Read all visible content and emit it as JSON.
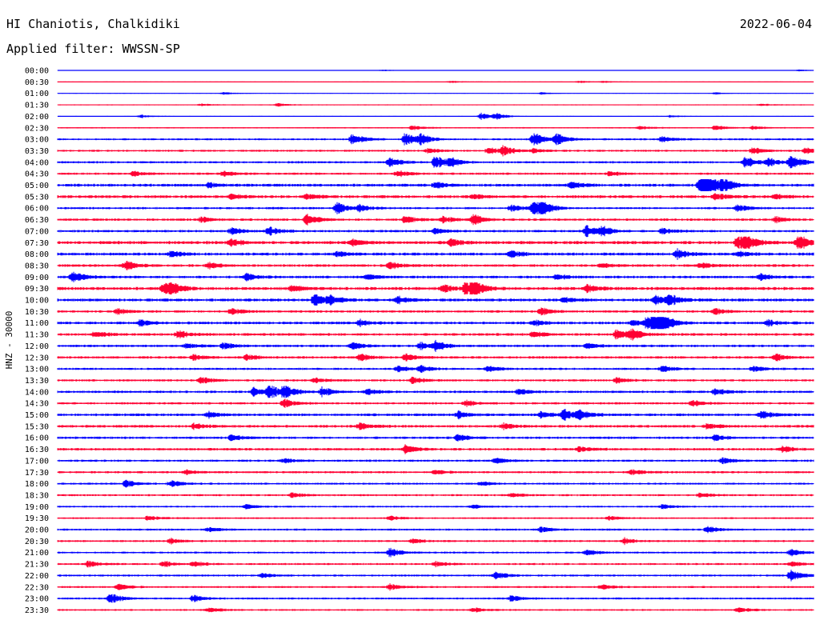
{
  "header": {
    "station": "HI Chaniotis, Chalkidiki",
    "date": "2022-06-04",
    "filter": "Applied filter: WWSSN-SP"
  },
  "chart_data": {
    "type": "line",
    "title": "HI Chaniotis, Chalkidiki",
    "ylabel": "HNZ - 30000",
    "colors": {
      "even_hour": "#0000ff",
      "half_hour": "#ff0033"
    },
    "rows": [
      {
        "label": "00:00",
        "noise": 0.25,
        "events": [
          [
            0.43,
            0.6
          ],
          [
            0.98,
            0.8
          ]
        ]
      },
      {
        "label": "00:30",
        "noise": 0.35,
        "events": [
          [
            0.52,
            1.0
          ],
          [
            0.69,
            1.0
          ],
          [
            0.72,
            0.8
          ]
        ]
      },
      {
        "label": "01:00",
        "noise": 0.3,
        "events": [
          [
            0.22,
            1.2
          ],
          [
            0.64,
            0.9
          ],
          [
            0.87,
            1.0
          ]
        ]
      },
      {
        "label": "01:30",
        "noise": 0.45,
        "events": [
          [
            0.19,
            1.0
          ],
          [
            0.29,
            1.5
          ],
          [
            0.93,
            0.9
          ]
        ]
      },
      {
        "label": "02:00",
        "noise": 0.35,
        "events": [
          [
            0.11,
            1.5
          ],
          [
            0.56,
            3.0
          ],
          [
            0.58,
            2.5
          ],
          [
            0.81,
            1.0
          ]
        ]
      },
      {
        "label": "02:30",
        "noise": 0.6,
        "events": [
          [
            0.47,
            2.0
          ],
          [
            0.77,
            1.5
          ],
          [
            0.87,
            2.2
          ],
          [
            0.92,
            1.5
          ]
        ]
      },
      {
        "label": "03:00",
        "noise": 0.9,
        "events": [
          [
            0.39,
            5.0
          ],
          [
            0.46,
            6.0
          ],
          [
            0.48,
            4.0
          ],
          [
            0.63,
            6.0
          ],
          [
            0.66,
            5.0
          ],
          [
            0.8,
            2.5
          ]
        ]
      },
      {
        "label": "03:30",
        "noise": 0.9,
        "events": [
          [
            0.49,
            2.0
          ],
          [
            0.57,
            3.0
          ],
          [
            0.59,
            4.0
          ],
          [
            0.63,
            2.0
          ],
          [
            0.92,
            3.0
          ],
          [
            0.99,
            2.5
          ]
        ]
      },
      {
        "label": "04:00",
        "noise": 1.0,
        "events": [
          [
            0.44,
            4.0
          ],
          [
            0.5,
            6.0
          ],
          [
            0.52,
            3.0
          ],
          [
            0.91,
            5.0
          ],
          [
            0.94,
            4.0
          ],
          [
            0.97,
            7.0
          ]
        ]
      },
      {
        "label": "04:30",
        "noise": 1.0,
        "events": [
          [
            0.1,
            2.0
          ],
          [
            0.22,
            2.5
          ],
          [
            0.45,
            3.0
          ],
          [
            0.73,
            2.0
          ]
        ]
      },
      {
        "label": "05:00",
        "noise": 1.3,
        "events": [
          [
            0.2,
            2.0
          ],
          [
            0.5,
            2.5
          ],
          [
            0.68,
            3.0
          ],
          [
            0.85,
            7.0
          ],
          [
            0.86,
            8.0
          ],
          [
            0.88,
            5.0
          ]
        ]
      },
      {
        "label": "05:30",
        "noise": 1.3,
        "events": [
          [
            0.23,
            2.0
          ],
          [
            0.33,
            2.5
          ],
          [
            0.55,
            2.0
          ],
          [
            0.87,
            3.0
          ],
          [
            0.95,
            2.0
          ]
        ]
      },
      {
        "label": "06:00",
        "noise": 1.0,
        "events": [
          [
            0.37,
            5.0
          ],
          [
            0.4,
            3.0
          ],
          [
            0.6,
            3.0
          ],
          [
            0.63,
            6.0
          ],
          [
            0.64,
            5.0
          ],
          [
            0.9,
            3.0
          ]
        ]
      },
      {
        "label": "06:30",
        "noise": 1.1,
        "events": [
          [
            0.19,
            2.5
          ],
          [
            0.33,
            5.0
          ],
          [
            0.46,
            3.0
          ],
          [
            0.51,
            3.0
          ],
          [
            0.55,
            4.5
          ],
          [
            0.95,
            2.5
          ]
        ]
      },
      {
        "label": "07:00",
        "noise": 1.1,
        "events": [
          [
            0.23,
            3.0
          ],
          [
            0.28,
            4.0
          ],
          [
            0.5,
            2.5
          ],
          [
            0.7,
            5.0
          ],
          [
            0.72,
            4.0
          ],
          [
            0.8,
            2.5
          ]
        ]
      },
      {
        "label": "07:30",
        "noise": 1.4,
        "events": [
          [
            0.23,
            3.0
          ],
          [
            0.39,
            3.0
          ],
          [
            0.52,
            3.0
          ],
          [
            0.9,
            6.0
          ],
          [
            0.91,
            5.0
          ],
          [
            0.98,
            7.0
          ]
        ]
      },
      {
        "label": "08:00",
        "noise": 1.3,
        "events": [
          [
            0.15,
            2.5
          ],
          [
            0.37,
            2.5
          ],
          [
            0.6,
            3.0
          ],
          [
            0.82,
            4.0
          ],
          [
            0.9,
            2.5
          ]
        ]
      },
      {
        "label": "08:30",
        "noise": 1.2,
        "events": [
          [
            0.09,
            4.0
          ],
          [
            0.2,
            2.5
          ],
          [
            0.44,
            3.0
          ],
          [
            0.72,
            2.0
          ],
          [
            0.85,
            2.5
          ]
        ]
      },
      {
        "label": "09:00",
        "noise": 1.2,
        "events": [
          [
            0.02,
            5.0
          ],
          [
            0.25,
            3.0
          ],
          [
            0.41,
            2.5
          ],
          [
            0.66,
            2.5
          ],
          [
            0.93,
            3.0
          ]
        ]
      },
      {
        "label": "09:30",
        "noise": 1.4,
        "events": [
          [
            0.14,
            5.0
          ],
          [
            0.15,
            4.0
          ],
          [
            0.31,
            2.5
          ],
          [
            0.51,
            3.0
          ],
          [
            0.54,
            6.0
          ],
          [
            0.55,
            5.0
          ],
          [
            0.7,
            3.0
          ]
        ]
      },
      {
        "label": "10:00",
        "noise": 1.3,
        "events": [
          [
            0.34,
            5.0
          ],
          [
            0.36,
            4.0
          ],
          [
            0.45,
            3.0
          ],
          [
            0.67,
            2.5
          ],
          [
            0.79,
            5.0
          ],
          [
            0.81,
            4.0
          ]
        ]
      },
      {
        "label": "10:30",
        "noise": 1.1,
        "events": [
          [
            0.08,
            2.5
          ],
          [
            0.23,
            2.5
          ],
          [
            0.64,
            3.0
          ],
          [
            0.87,
            2.5
          ]
        ]
      },
      {
        "label": "11:00",
        "noise": 1.2,
        "events": [
          [
            0.11,
            3.0
          ],
          [
            0.4,
            3.0
          ],
          [
            0.63,
            2.5
          ],
          [
            0.76,
            3.0
          ],
          [
            0.78,
            6.0
          ],
          [
            0.79,
            7.0
          ],
          [
            0.8,
            5.0
          ],
          [
            0.94,
            2.5
          ]
        ]
      },
      {
        "label": "11:30",
        "noise": 1.2,
        "events": [
          [
            0.05,
            2.5
          ],
          [
            0.16,
            3.5
          ],
          [
            0.63,
            3.0
          ],
          [
            0.74,
            5.0
          ],
          [
            0.76,
            4.0
          ]
        ]
      },
      {
        "label": "12:00",
        "noise": 1.1,
        "events": [
          [
            0.17,
            2.0
          ],
          [
            0.22,
            3.0
          ],
          [
            0.39,
            3.0
          ],
          [
            0.48,
            3.5
          ],
          [
            0.5,
            4.0
          ],
          [
            0.7,
            2.5
          ]
        ]
      },
      {
        "label": "12:30",
        "noise": 1.1,
        "events": [
          [
            0.18,
            2.5
          ],
          [
            0.25,
            2.5
          ],
          [
            0.4,
            3.0
          ],
          [
            0.46,
            3.0
          ],
          [
            0.95,
            3.0
          ]
        ]
      },
      {
        "label": "13:00",
        "noise": 1.0,
        "events": [
          [
            0.45,
            3.0
          ],
          [
            0.48,
            3.0
          ],
          [
            0.57,
            2.5
          ],
          [
            0.8,
            2.5
          ],
          [
            0.92,
            2.5
          ]
        ]
      },
      {
        "label": "13:30",
        "noise": 1.0,
        "events": [
          [
            0.19,
            3.0
          ],
          [
            0.34,
            2.5
          ],
          [
            0.47,
            3.0
          ],
          [
            0.74,
            2.5
          ]
        ]
      },
      {
        "label": "14:00",
        "noise": 1.1,
        "events": [
          [
            0.26,
            4.0
          ],
          [
            0.28,
            6.0
          ],
          [
            0.3,
            5.0
          ],
          [
            0.35,
            4.0
          ],
          [
            0.41,
            2.5
          ],
          [
            0.61,
            2.5
          ],
          [
            0.87,
            3.0
          ]
        ]
      },
      {
        "label": "14:30",
        "noise": 1.0,
        "events": [
          [
            0.3,
            3.5
          ],
          [
            0.54,
            2.5
          ],
          [
            0.84,
            3.0
          ]
        ]
      },
      {
        "label": "15:00",
        "noise": 1.2,
        "events": [
          [
            0.2,
            2.5
          ],
          [
            0.53,
            3.0
          ],
          [
            0.64,
            3.0
          ],
          [
            0.67,
            5.0
          ],
          [
            0.69,
            4.0
          ],
          [
            0.93,
            3.5
          ]
        ]
      },
      {
        "label": "15:30",
        "noise": 1.2,
        "events": [
          [
            0.18,
            2.5
          ],
          [
            0.4,
            3.0
          ],
          [
            0.59,
            2.5
          ],
          [
            0.86,
            2.5
          ]
        ]
      },
      {
        "label": "16:00",
        "noise": 1.1,
        "events": [
          [
            0.23,
            2.5
          ],
          [
            0.53,
            3.0
          ],
          [
            0.87,
            2.5
          ]
        ]
      },
      {
        "label": "16:30",
        "noise": 1.1,
        "events": [
          [
            0.46,
            3.5
          ],
          [
            0.69,
            2.5
          ],
          [
            0.96,
            2.5
          ]
        ]
      },
      {
        "label": "17:00",
        "noise": 1.0,
        "events": [
          [
            0.3,
            2.0
          ],
          [
            0.58,
            2.5
          ],
          [
            0.88,
            2.5
          ]
        ]
      },
      {
        "label": "17:30",
        "noise": 1.0,
        "events": [
          [
            0.17,
            2.0
          ],
          [
            0.5,
            2.0
          ],
          [
            0.76,
            2.5
          ]
        ]
      },
      {
        "label": "18:00",
        "noise": 0.9,
        "events": [
          [
            0.09,
            3.5
          ],
          [
            0.15,
            3.0
          ],
          [
            0.56,
            2.0
          ]
        ]
      },
      {
        "label": "18:30",
        "noise": 0.9,
        "events": [
          [
            0.31,
            2.5
          ],
          [
            0.6,
            2.0
          ],
          [
            0.85,
            2.0
          ]
        ]
      },
      {
        "label": "19:00",
        "noise": 0.8,
        "events": [
          [
            0.25,
            2.0
          ],
          [
            0.55,
            2.0
          ],
          [
            0.8,
            2.0
          ]
        ]
      },
      {
        "label": "19:30",
        "noise": 0.8,
        "events": [
          [
            0.12,
            2.0
          ],
          [
            0.44,
            2.0
          ],
          [
            0.73,
            2.0
          ]
        ]
      },
      {
        "label": "20:00",
        "noise": 0.9,
        "events": [
          [
            0.2,
            2.0
          ],
          [
            0.64,
            2.5
          ],
          [
            0.86,
            3.0
          ]
        ]
      },
      {
        "label": "20:30",
        "noise": 0.9,
        "events": [
          [
            0.15,
            2.5
          ],
          [
            0.47,
            2.0
          ],
          [
            0.75,
            2.5
          ]
        ]
      },
      {
        "label": "21:00",
        "noise": 0.9,
        "events": [
          [
            0.44,
            4.0
          ],
          [
            0.7,
            2.5
          ],
          [
            0.97,
            3.0
          ]
        ]
      },
      {
        "label": "21:30",
        "noise": 0.9,
        "events": [
          [
            0.04,
            2.5
          ],
          [
            0.14,
            2.5
          ],
          [
            0.18,
            2.5
          ],
          [
            0.5,
            2.0
          ],
          [
            0.97,
            2.5
          ]
        ]
      },
      {
        "label": "22:00",
        "noise": 0.9,
        "events": [
          [
            0.27,
            2.0
          ],
          [
            0.58,
            3.5
          ],
          [
            0.97,
            5.0
          ]
        ]
      },
      {
        "label": "22:30",
        "noise": 0.9,
        "events": [
          [
            0.08,
            3.0
          ],
          [
            0.44,
            2.5
          ],
          [
            0.72,
            2.5
          ]
        ]
      },
      {
        "label": "23:00",
        "noise": 0.9,
        "events": [
          [
            0.07,
            4.5
          ],
          [
            0.18,
            3.0
          ],
          [
            0.6,
            2.5
          ]
        ]
      },
      {
        "label": "23:30",
        "noise": 0.8,
        "events": [
          [
            0.2,
            2.5
          ],
          [
            0.55,
            2.0
          ],
          [
            0.9,
            2.5
          ]
        ]
      }
    ]
  }
}
